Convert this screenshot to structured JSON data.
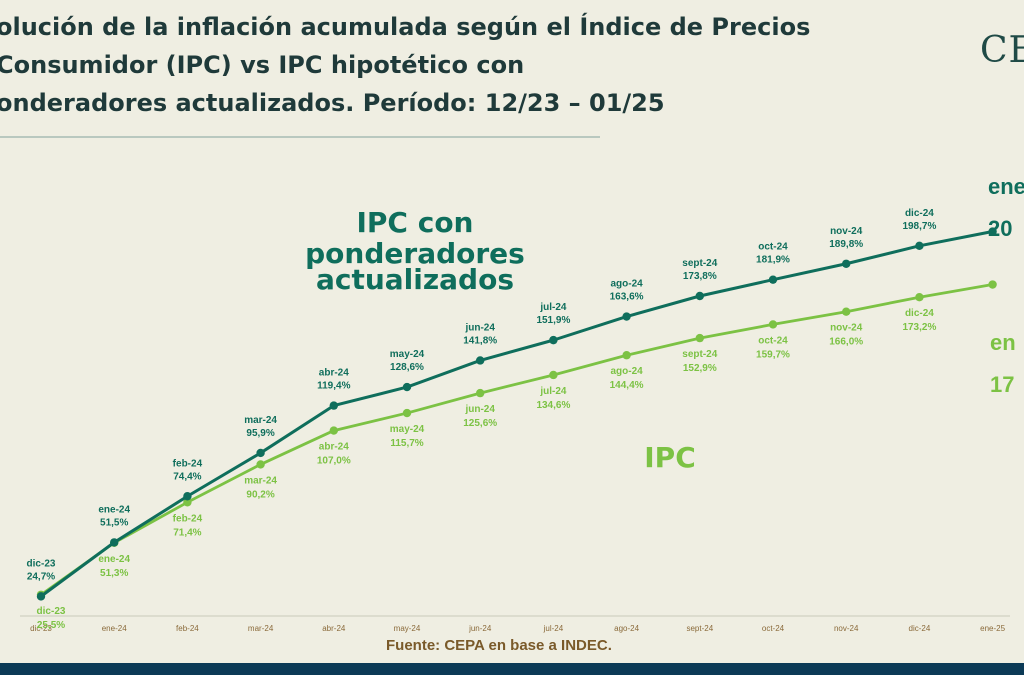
{
  "title": {
    "line1": "olución de la inflación acumulada según el Índice de Precios",
    "line2": "Consumidor (IPC) vs IPC hipotético con",
    "line3": "onderadores actualizados. Período: 12/23 – 01/25"
  },
  "logo": "CE",
  "source": "Fuente: CEPA en base a INDEC.",
  "colors": {
    "updated": "#0f6e5c",
    "ipc": "#7cc244",
    "background": "#efeee2"
  },
  "chart_data": {
    "type": "line",
    "x": [
      "dic-23",
      "ene-24",
      "feb-24",
      "mar-24",
      "abr-24",
      "may-24",
      "jun-24",
      "jul-24",
      "ago-24",
      "sept-24",
      "oct-24",
      "nov-24",
      "dic-24",
      "ene-25"
    ],
    "series": [
      {
        "name": "IPC con ponderadores actualizados",
        "label_lines": [
          "IPC con",
          "ponderadores",
          "actualizados"
        ],
        "color": "#0f6e5c",
        "values": [
          24.7,
          51.5,
          74.4,
          95.9,
          119.4,
          128.6,
          141.8,
          151.9,
          163.6,
          173.8,
          181.9,
          189.8,
          198.7,
          205.8
        ],
        "labels": [
          "24,7%",
          "51,5%",
          "74,4%",
          "95,9%",
          "119,4%",
          "128,6%",
          "141,8%",
          "151,9%",
          "163,6%",
          "173,8%",
          "181,9%",
          "189,8%",
          "198,7%",
          "20"
        ],
        "final_month_label": "ene"
      },
      {
        "name": "IPC",
        "label_lines": [
          "IPC"
        ],
        "color": "#7cc244",
        "values": [
          25.5,
          51.3,
          71.4,
          90.2,
          107.0,
          115.7,
          125.6,
          134.6,
          144.4,
          152.9,
          159.7,
          166.0,
          173.2,
          179.5
        ],
        "labels": [
          "25,5%",
          "51,3%",
          "71,4%",
          "90,2%",
          "107,0%",
          "115,7%",
          "125,6%",
          "134,6%",
          "144,4%",
          "152,9%",
          "159,7%",
          "166,0%",
          "173,2%",
          "17"
        ],
        "final_month_label": "en"
      }
    ],
    "ylim": [
      10,
      215
    ],
    "grid": false,
    "legend": "inline labels"
  }
}
